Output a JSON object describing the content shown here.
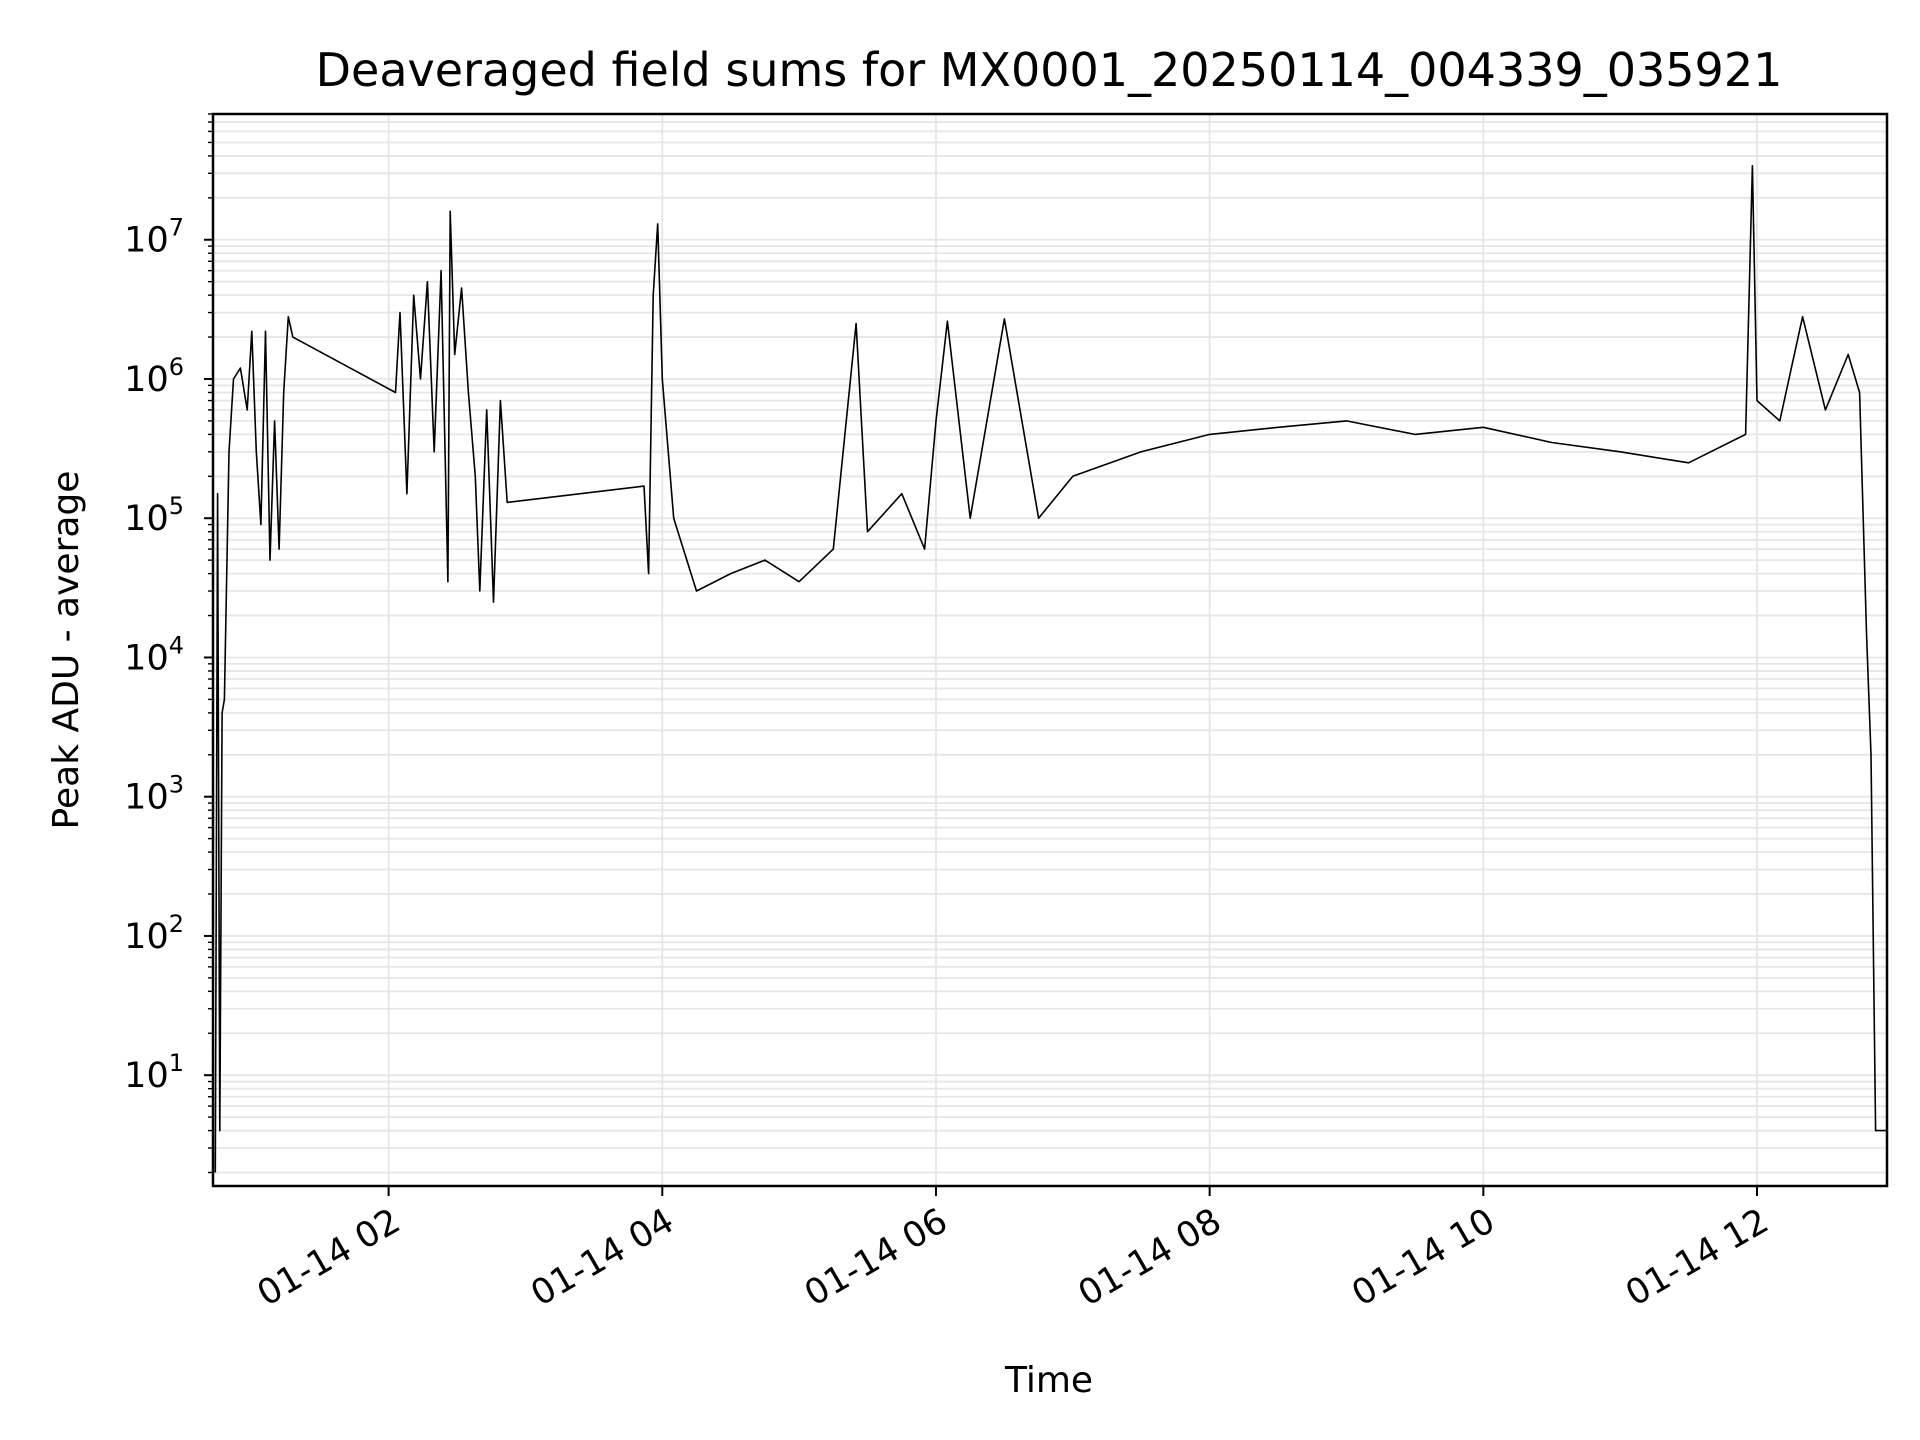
{
  "chart_data": {
    "type": "line",
    "title": "Deaveraged field sums for MX0001_20250114_004339_035921",
    "xlabel": "Time",
    "ylabel": "Peak ADU - average",
    "yscale": "log",
    "ylim": [
      1.6,
      80000000
    ],
    "xlim": [
      "2025-01-14 00:43",
      "2025-01-14 12:57"
    ],
    "grid": true,
    "line_color": "#000000",
    "grid_color": "#e6e6e6",
    "x_ticks": [
      {
        "value": "2025-01-14 02:00",
        "label": "01-14 02"
      },
      {
        "value": "2025-01-14 04:00",
        "label": "01-14 04"
      },
      {
        "value": "2025-01-14 06:00",
        "label": "01-14 06"
      },
      {
        "value": "2025-01-14 08:00",
        "label": "01-14 08"
      },
      {
        "value": "2025-01-14 10:00",
        "label": "01-14 10"
      },
      {
        "value": "2025-01-14 12:00",
        "label": "01-14 12"
      }
    ],
    "y_ticks": [
      {
        "value": 10,
        "base": "10",
        "exp": "1"
      },
      {
        "value": 100,
        "base": "10",
        "exp": "2"
      },
      {
        "value": 1000,
        "base": "10",
        "exp": "3"
      },
      {
        "value": 10000,
        "base": "10",
        "exp": "4"
      },
      {
        "value": 100000,
        "base": "10",
        "exp": "5"
      },
      {
        "value": 1000000,
        "base": "10",
        "exp": "6"
      },
      {
        "value": 10000000,
        "base": "10",
        "exp": "7"
      }
    ],
    "series": [
      {
        "segments": [
          {
            "comment": "Observation block 1",
            "x": [
              "2025-01-14 00:44",
              "2025-01-14 00:45",
              "2025-01-14 00:46",
              "2025-01-14 00:47",
              "2025-01-14 00:48",
              "2025-01-14 00:50",
              "2025-01-14 00:52",
              "2025-01-14 00:55",
              "2025-01-14 00:58",
              "2025-01-14 01:00",
              "2025-01-14 01:02",
              "2025-01-14 01:04",
              "2025-01-14 01:06",
              "2025-01-14 01:08",
              "2025-01-14 01:10",
              "2025-01-14 01:12",
              "2025-01-14 01:14",
              "2025-01-14 01:16",
              "2025-01-14 01:18"
            ],
            "y": [
              2,
              150000,
              4,
              4000,
              5000,
              300000,
              1000000,
              1200000,
              600000,
              2200000,
              300000,
              90000,
              2200000,
              50000,
              500000,
              60000,
              800000,
              2800000,
              2000000
            ]
          },
          {
            "comment": "Observation block 2",
            "x": [
              "2025-01-14 02:03",
              "2025-01-14 02:05",
              "2025-01-14 02:08",
              "2025-01-14 02:11",
              "2025-01-14 02:14",
              "2025-01-14 02:17",
              "2025-01-14 02:20",
              "2025-01-14 02:23",
              "2025-01-14 02:26",
              "2025-01-14 02:27",
              "2025-01-14 02:29",
              "2025-01-14 02:32",
              "2025-01-14 02:35",
              "2025-01-14 02:38",
              "2025-01-14 02:40",
              "2025-01-14 02:43",
              "2025-01-14 02:46",
              "2025-01-14 02:49",
              "2025-01-14 02:52"
            ],
            "y": [
              800000,
              3000000,
              150000,
              4000000,
              1000000,
              5000000,
              300000,
              6000000,
              35000,
              16000000,
              1500000,
              4500000,
              800000,
              200000,
              30000,
              600000,
              25000,
              700000,
              130000
            ]
          },
          {
            "comment": "Observation block 3",
            "x": [
              "2025-01-14 03:52",
              "2025-01-14 03:54",
              "2025-01-14 03:56",
              "2025-01-14 03:58",
              "2025-01-14 04:00",
              "2025-01-14 04:05",
              "2025-01-14 04:15",
              "2025-01-14 04:30",
              "2025-01-14 04:45",
              "2025-01-14 05:00",
              "2025-01-14 05:15",
              "2025-01-14 05:25",
              "2025-01-14 05:30",
              "2025-01-14 05:45",
              "2025-01-14 05:55",
              "2025-01-14 06:00",
              "2025-01-14 06:05",
              "2025-01-14 06:15",
              "2025-01-14 06:30",
              "2025-01-14 06:45",
              "2025-01-14 07:00",
              "2025-01-14 07:30",
              "2025-01-14 08:00",
              "2025-01-14 08:30",
              "2025-01-14 09:00",
              "2025-01-14 09:30",
              "2025-01-14 10:00",
              "2025-01-14 10:30",
              "2025-01-14 11:00",
              "2025-01-14 11:30",
              "2025-01-14 11:55",
              "2025-01-14 11:58",
              "2025-01-14 12:00",
              "2025-01-14 12:10",
              "2025-01-14 12:20",
              "2025-01-14 12:30",
              "2025-01-14 12:40",
              "2025-01-14 12:45",
              "2025-01-14 12:48",
              "2025-01-14 12:50",
              "2025-01-14 12:52",
              "2025-01-14 12:57"
            ],
            "y": [
              170000,
              40000,
              4000000,
              13000000,
              1000000,
              100000,
              30000,
              40000,
              50000,
              35000,
              60000,
              2500000,
              80000,
              150000,
              60000,
              500000,
              2600000,
              100000,
              2700000,
              100000,
              200000,
              300000,
              400000,
              450000,
              500000,
              400000,
              450000,
              350000,
              300000,
              250000,
              400000,
              34000000,
              700000,
              500000,
              2800000,
              600000,
              1500000,
              800000,
              15000,
              2000,
              4,
              4
            ]
          }
        ]
      }
    ]
  }
}
